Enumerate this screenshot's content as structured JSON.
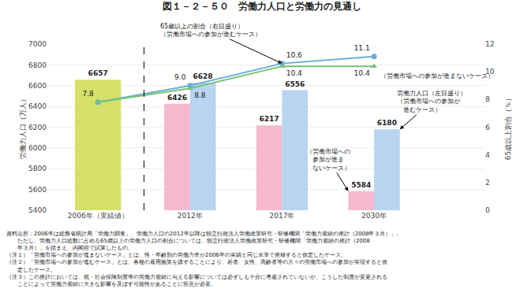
{
  "chart_data": {
    "type": "bar",
    "title": "図１－２－５０　労働力人口と労働力の見通し",
    "categories": [
      "2006年（実績値）",
      "2012年",
      "2017年",
      "2030年"
    ],
    "series": [
      {
        "type": "bar",
        "colors": [
          "#d4e06a",
          "#f5b8cc",
          "#f5b8cc",
          "#f5b8cc"
        ],
        "values": [
          6657,
          6426,
          6217,
          5584
        ]
      },
      {
        "type": "bar",
        "color": "#b8d4f0",
        "values": [
          null,
          6628,
          6556,
          6180
        ]
      },
      {
        "type": "line",
        "axis": "y2",
        "color": "#6baed6",
        "marker": "circle",
        "values": [
          7.8,
          9.0,
          10.6,
          11.1
        ],
        "value_labels": [
          "7.8",
          "9.0",
          "10.6",
          "11.1"
        ]
      },
      {
        "type": "line",
        "axis": "y2",
        "color": "#74c476",
        "marker": "triangle",
        "values": [
          7.8,
          8.8,
          10.4,
          10.4
        ],
        "value_labels": [
          null,
          "8.8",
          "10.4",
          "10.4"
        ]
      }
    ],
    "ylabel": "労働力人口（万人）",
    "y2label": "65歳以上割合（％）",
    "ylim": [
      5400,
      7000
    ],
    "yticks": [
      5400,
      5600,
      5800,
      6000,
      6200,
      6400,
      6600,
      6800,
      7000
    ],
    "y2lim": [
      0,
      12
    ],
    "y2ticks": [
      0,
      2,
      4,
      6,
      8,
      10,
      12
    ],
    "grid": true,
    "data_labels": true,
    "annotations": [
      "労働力人口（左目盛り）\n（労働市場への参加が\n　進むケース）",
      "（労働市場への\n　参加が進ま\n　ないケース）",
      "（労働市場への参加が進まないケース）",
      "65歳以上の割合（右目盛り）\n（労働市場への参加が進むケース）"
    ],
    "notes": [
      "資料出所：2006年は総務省統計局「労働力調査」、労働力人口の2012年以降は独立行政法人労働政策研究・研修機関「労働力需給の推計（2008年３月）」。",
      "　　ただし、労働力人口総数に占める65歳以上の労働力人口の割合については、独立行政法人労働政策研究・研修機関「労働力需給の推計（2008",
      "　　年３月）」を踏まえ、内閣府で試算したもの。",
      "（注１）「労働市場への参加が進まないケース」とは、性・年齢別の労働力率が2006年の実績と同じ水準で推移すると仮定したケース。",
      "（注２）「労働市場への参加が進むケース」とは、各種の雇用施策を講ずることにより、若者、女性、高齢者等の方々の労働市場への参加が実現すると仮",
      "　　定したケース。",
      "（注３）この推計においては、税・社会保険制度等の労働力需給に与える影響については必ずしも十分に考慮されていないが、こうした制度が変更される",
      "　　ことによって労働力需給に大きな影響を及ぼす可能性があることに留意が必要。"
    ]
  }
}
